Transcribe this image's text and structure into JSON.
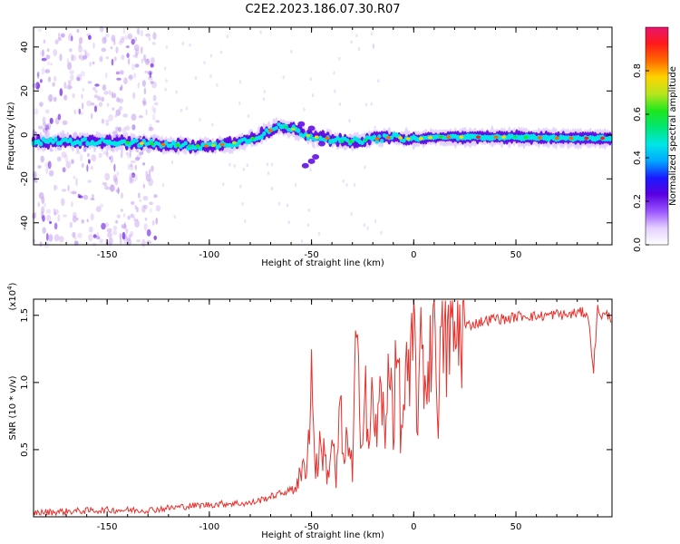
{
  "title": "C2E2.2023.186.07.30.R07",
  "colors": {
    "snr_line": "#e8302c",
    "axis": "#000000",
    "scatter_faint": "#c9a8f0",
    "scatter_deep": "#5a00e0"
  },
  "chart_data": [
    {
      "type": "heatmap",
      "title": "C2E2.2023.186.07.30.R07",
      "xlabel": "Height of straight line (km)",
      "ylabel": "Frequency (Hz)",
      "xlim": [
        -186,
        97
      ],
      "ylim": [
        -50,
        49
      ],
      "xticks": [
        -150,
        -100,
        -50,
        0,
        50
      ],
      "yticks": [
        -40,
        -20,
        0,
        20,
        40
      ],
      "grid": false,
      "ridge": {
        "description_series": "dominant frequency ridge",
        "x": [
          -186,
          -170,
          -150,
          -130,
          -110,
          -100,
          -90,
          -80,
          -70,
          -65,
          -60,
          -55,
          -50,
          -45,
          -40,
          -35,
          -30,
          -20,
          -10,
          0,
          10,
          20,
          30,
          50,
          70,
          95
        ],
        "y": [
          -3,
          -3,
          -3,
          -4,
          -5,
          -5,
          -4,
          -2,
          2,
          4,
          3,
          1,
          -1,
          -1,
          -2,
          -3,
          -3,
          -2,
          -1,
          -2,
          -1,
          -1,
          -1,
          -1,
          -1.5,
          -1.5
        ]
      },
      "colorbar": {
        "label": "Normalized spectral amplitude",
        "range": [
          0.0,
          1.0
        ],
        "ticks": [
          "0.0",
          "0.2",
          "0.4",
          "0.6",
          "0.8"
        ],
        "tick_values": [
          0.0,
          0.2,
          0.4,
          0.6,
          0.8
        ],
        "colormap": [
          "#ffffff",
          "#e4d0ff",
          "#9a55ff",
          "#5a00e0",
          "#1a1aff",
          "#00a8ff",
          "#00e6e6",
          "#00e676",
          "#1ee61e",
          "#b4e61e",
          "#ffd400",
          "#ff6a00",
          "#ff1a1a",
          "#e8146e"
        ]
      }
    },
    {
      "type": "line",
      "xlabel": "Height of straight line (km)",
      "ylabel": "SNR (10 * v/v)",
      "y_multiplier": "(x10",
      "y_multiplier_exp": "4",
      "y_multiplier_close": ")",
      "xlim": [
        -186,
        97
      ],
      "ylim": [
        0,
        1.62
      ],
      "xticks": [
        -150,
        -100,
        -50,
        0,
        50
      ],
      "yticks": [
        0.5,
        1.0,
        1.5
      ],
      "ytick_labels": [
        "0.5",
        "1.0",
        "1.5"
      ],
      "grid": false,
      "series": [
        {
          "x": [
            -186,
            -170,
            -150,
            -130,
            -110,
            -100,
            -90,
            -80,
            -70,
            -60,
            -55,
            -52,
            -50,
            -48,
            -45,
            -42,
            -40,
            -38,
            -36,
            -34,
            -32,
            -30,
            -28,
            -26,
            -24,
            -22,
            -20,
            -18,
            -16,
            -14,
            -12,
            -10,
            -8,
            -6,
            -4,
            -2,
            0,
            2,
            4,
            6,
            8,
            10,
            12,
            14,
            16,
            18,
            20,
            22,
            25,
            30,
            35,
            40,
            45,
            50,
            55,
            60,
            65,
            70,
            75,
            80,
            85,
            88,
            90,
            92,
            95,
            97
          ],
          "y": [
            0.03,
            0.04,
            0.05,
            0.05,
            0.08,
            0.09,
            0.1,
            0.1,
            0.15,
            0.2,
            0.3,
            0.45,
            1.05,
            0.35,
            0.55,
            0.3,
            0.6,
            0.25,
            0.8,
            0.35,
            0.65,
            0.3,
            1.4,
            0.4,
            1.2,
            0.5,
            0.9,
            0.55,
            1.05,
            0.45,
            1.35,
            0.7,
            1.25,
            0.55,
            1.1,
            0.9,
            1.4,
            0.75,
            1.3,
            0.95,
            1.25,
            1.58,
            0.85,
            1.4,
            1.2,
            1.45,
            1.3,
            1.38,
            1.42,
            1.44,
            1.46,
            1.48,
            1.47,
            1.49,
            1.5,
            1.49,
            1.5,
            1.51,
            1.5,
            1.52,
            1.52,
            1.1,
            1.55,
            1.5,
            1.5,
            1.48
          ]
        }
      ]
    }
  ]
}
